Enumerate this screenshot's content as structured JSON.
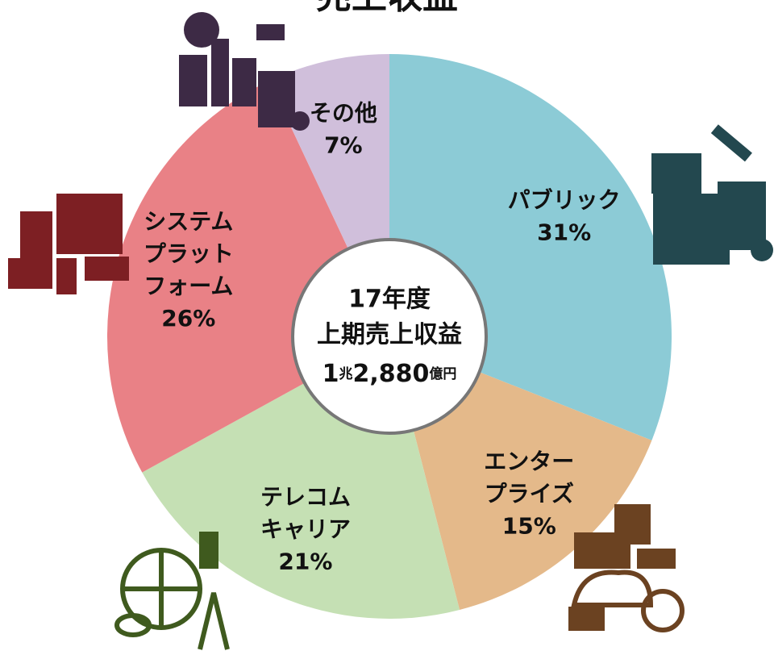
{
  "chart_data": {
    "type": "donut",
    "title": "売上収益",
    "center_text": [
      "17年度",
      "上期売上収益"
    ],
    "center_amount": [
      "1",
      "兆",
      "2,880",
      "億円"
    ],
    "categories": [
      [
        "パブリック"
      ],
      [
        "エンター",
        "プライズ"
      ],
      [
        "テレコム",
        "キャリア"
      ],
      [
        "システム",
        "プラット",
        "フォーム"
      ],
      [
        "その他"
      ]
    ],
    "values": [
      31,
      15,
      21,
      26,
      7
    ],
    "value_labels": [
      "31%",
      "15%",
      "21%",
      "26%",
      "7%"
    ],
    "colors": [
      "#8ccbd6",
      "#e4b98a",
      "#c5e0b4",
      "#e98186",
      "#d0bfdb"
    ]
  }
}
